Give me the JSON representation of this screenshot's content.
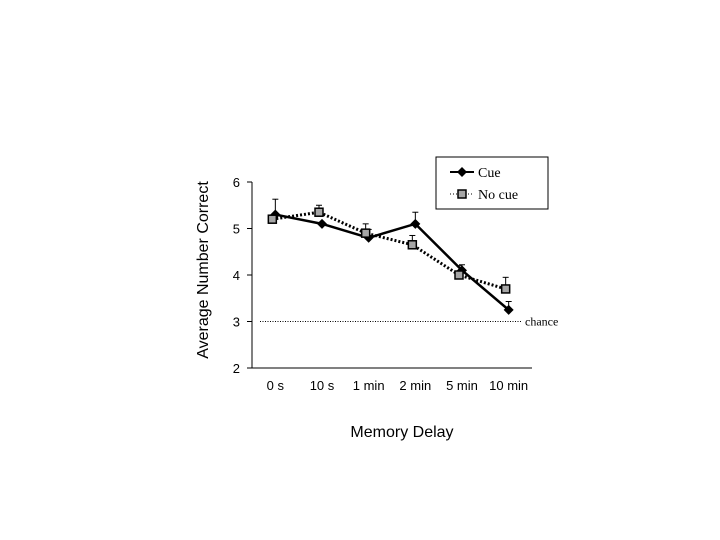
{
  "chart_data": {
    "type": "line",
    "xlabel": "Memory Delay",
    "ylabel": "Average Number Correct",
    "ylim": [
      2,
      6
    ],
    "yticks": [
      2,
      3,
      4,
      5,
      6
    ],
    "categories": [
      "0 s",
      "10 s",
      "1 min",
      "2 min",
      "5 min",
      "10 min"
    ],
    "series": [
      {
        "name": "Cue",
        "style": "solid",
        "marker": "diamond",
        "color": "#000000",
        "values": [
          5.3,
          5.1,
          4.8,
          5.1,
          4.1,
          3.25
        ],
        "errors": [
          0.33,
          0.0,
          0.18,
          0.25,
          0.12,
          0.18
        ]
      },
      {
        "name": "No cue",
        "style": "dotted",
        "marker": "square",
        "color": "#000000",
        "marker_fill": "#a6a6a6",
        "values": [
          5.2,
          5.35,
          4.9,
          4.65,
          4.0,
          3.7
        ],
        "errors": [
          0.0,
          0.15,
          0.2,
          0.2,
          0.2,
          0.25
        ]
      }
    ],
    "reference_line": {
      "value": 3,
      "label": "chance",
      "style": "dotted"
    },
    "legend_position": "top-right",
    "grid": false
  }
}
